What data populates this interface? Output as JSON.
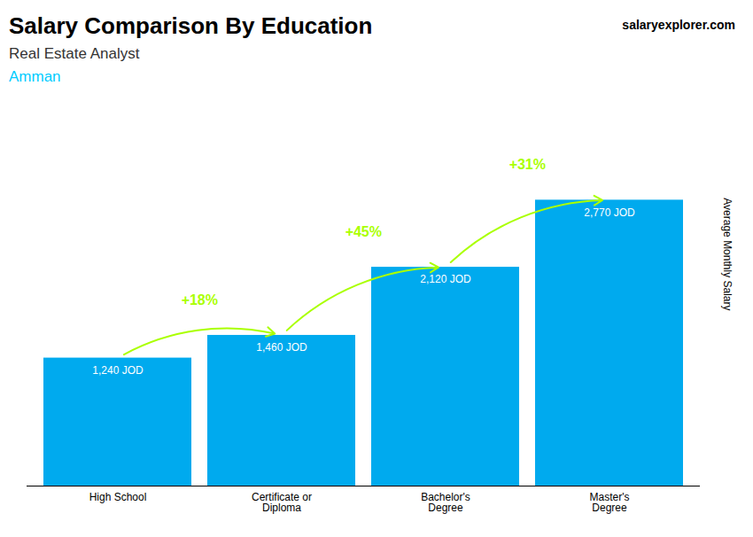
{
  "chart_data": {
    "type": "bar",
    "title": "Salary Comparison By Education",
    "subtitle": "Real Estate Analyst",
    "city": "Amman",
    "city_color": "#00ccff",
    "watermark": "salaryexplorer.com",
    "ylabel": "Average Monthly Salary",
    "categories": [
      "High School",
      "Certificate or\nDiploma",
      "Bachelor's\nDegree",
      "Master's\nDegree"
    ],
    "values": [
      1240,
      1460,
      2120,
      2770
    ],
    "value_labels": [
      "1,240 JOD",
      "1,460 JOD",
      "2,120 JOD",
      "2,770 JOD"
    ],
    "data_labels": true,
    "color": "#00aaee",
    "annotations": [
      {
        "text": "+18%",
        "color": "#aaff00"
      },
      {
        "text": "+45%",
        "color": "#aaff00"
      },
      {
        "text": "+31%",
        "color": "#aaff00"
      }
    ],
    "ylim": [
      0,
      3400
    ],
    "tick_labels": "x",
    "grid": false
  }
}
